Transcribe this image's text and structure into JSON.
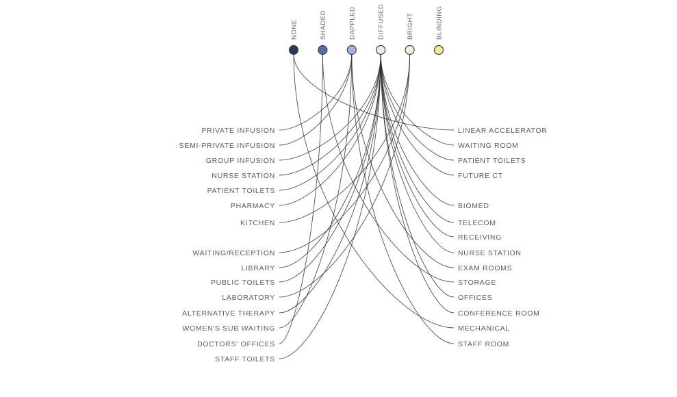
{
  "levels": [
    {
      "id": "none",
      "label": "NONE",
      "color": "#2f3852"
    },
    {
      "id": "shaded",
      "label": "SHADED",
      "color": "#5d6d99"
    },
    {
      "id": "dappled",
      "label": "DAPPLED",
      "color": "#a3b2d9"
    },
    {
      "id": "diffused",
      "label": "DIFFUSED",
      "color": "#e4ebf5"
    },
    {
      "id": "bright",
      "label": "BRIGHT",
      "color": "#f6f1d2"
    },
    {
      "id": "blinding",
      "label": "BLINDING",
      "color": "#f4ea95"
    }
  ],
  "left_spaces": [
    {
      "label": "PRIVATE INFUSION",
      "level": "dappled"
    },
    {
      "label": "SEMI-PRIVATE INFUSION",
      "level": "dappled"
    },
    {
      "label": "GROUP INFUSION",
      "level": "diffused"
    },
    {
      "label": "NURSE STATION",
      "level": "diffused"
    },
    {
      "label": "PATIENT TOILETS",
      "level": "diffused"
    },
    {
      "label": "PHARMACY",
      "level": "diffused"
    },
    {
      "label": "KITCHEN",
      "level": "bright"
    },
    {
      "label": "WAITING/RECEPTION",
      "level": "bright"
    },
    {
      "label": "LIBRARY",
      "level": "diffused"
    },
    {
      "label": "PUBLIC TOILETS",
      "level": "diffused"
    },
    {
      "label": "LABORATORY",
      "level": "bright"
    },
    {
      "label": "ALTERNATIVE THERAPY",
      "level": "diffused"
    },
    {
      "label": "WOMEN'S SUB WAITING",
      "level": "dappled"
    },
    {
      "label": "DOCTORS' OFFICES",
      "level": "shaded"
    },
    {
      "label": "STAFF TOILETS",
      "level": "diffused"
    }
  ],
  "right_spaces": [
    {
      "label": "LINEAR ACCELERATOR",
      "level": "none"
    },
    {
      "label": "WAITING ROOM",
      "level": "diffused"
    },
    {
      "label": "PATIENT TOILETS",
      "level": "diffused"
    },
    {
      "label": "FUTURE CT",
      "level": "diffused"
    },
    {
      "label": "BIOMED",
      "level": "diffused"
    },
    {
      "label": "TELECOM",
      "level": "diffused"
    },
    {
      "label": "RECEIVING",
      "level": "diffused"
    },
    {
      "label": "NURSE STATION",
      "level": "diffused"
    },
    {
      "label": "EXAM ROOMS",
      "level": "dappled"
    },
    {
      "label": "STORAGE",
      "level": "shaded"
    },
    {
      "label": "OFFICES",
      "level": "diffused"
    },
    {
      "label": "CONFERENCE ROOM",
      "level": "diffused"
    },
    {
      "label": "MECHANICAL",
      "level": "none"
    },
    {
      "label": "STAFF ROOM",
      "level": "dappled"
    }
  ]
}
